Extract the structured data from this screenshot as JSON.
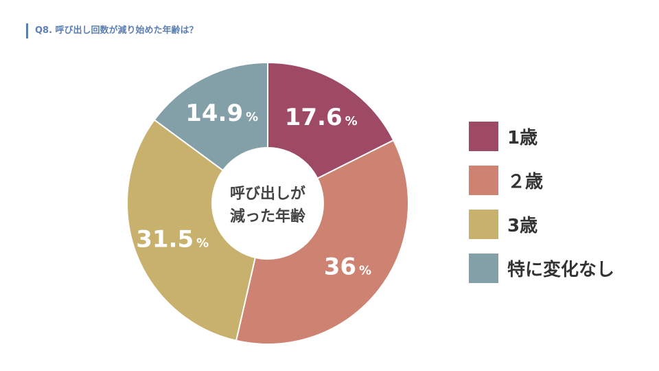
{
  "question": "Q8. 呼び出し回数が減り始めた年齢は？",
  "chart_data": {
    "type": "pie",
    "title": "",
    "center_label": [
      "呼び出しが",
      "減った年齢"
    ],
    "unit": "%",
    "categories": [
      "1歳",
      "２歳",
      "3歳",
      "特に変化なし"
    ],
    "values": [
      17.6,
      36,
      31.5,
      14.9
    ],
    "value_labels": [
      "17.6",
      "36",
      "31.5",
      "14.9"
    ],
    "colors": [
      "#9e4a64",
      "#cd8272",
      "#c8b16c",
      "#83a0a9"
    ],
    "legend_position": "right",
    "start_angle_deg": 0,
    "direction": "clockwise",
    "donut": true
  }
}
